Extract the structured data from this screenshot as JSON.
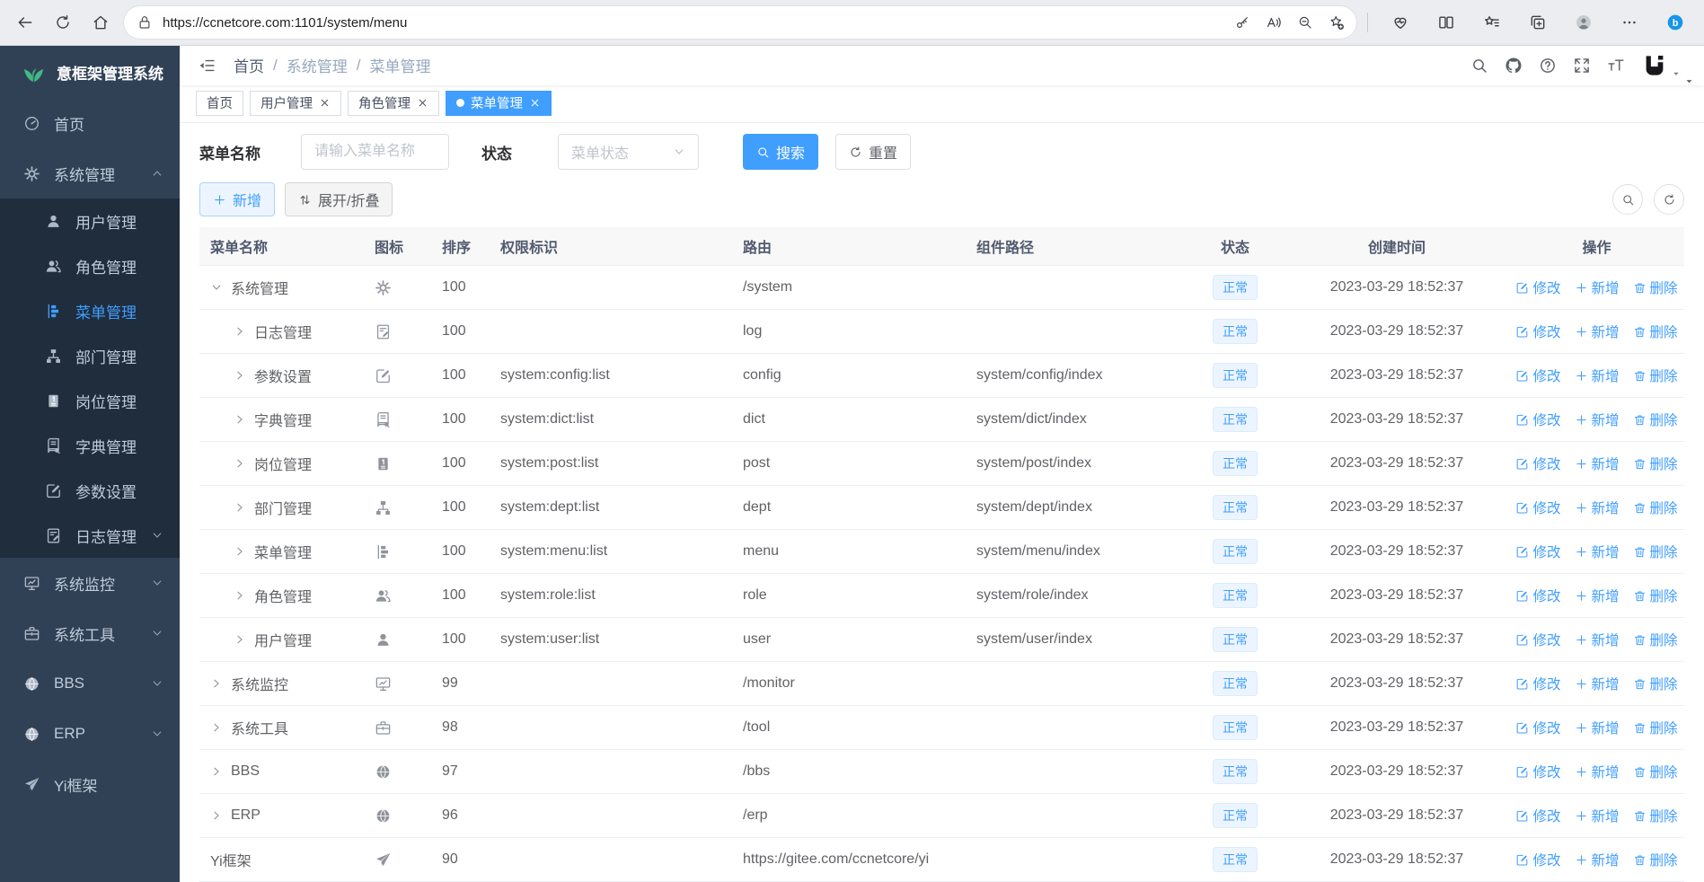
{
  "colors": {
    "accent": "#409EFF",
    "sidebar_bg": "#304156",
    "submenu_bg": "#1F2D3D",
    "logo_green": "#42B983",
    "badge_bg": "#ECF5FF",
    "badge_text": "#409EFF",
    "active_tab_bg": "#409EFF"
  },
  "browser": {
    "url": "https://ccnetcore.com:1101/system/menu",
    "nav_icons": [
      "back-arrow",
      "refresh",
      "home"
    ],
    "addressbar_icons": [
      "key",
      "read-aloud",
      "zoom-out",
      "star-add"
    ],
    "action_icons": [
      "browser-essentials",
      "split-screen",
      "favorites",
      "collections",
      "profile-avatar",
      "more-options",
      "bing-chat"
    ]
  },
  "sidebar": {
    "logo_text": "意框架管理系统",
    "items": [
      {
        "key": "home",
        "label": "首页",
        "icon": "dashboard",
        "level": 1
      },
      {
        "key": "system",
        "label": "系统管理",
        "icon": "gear",
        "level": 1,
        "chevron": "up",
        "expanded": true
      },
      {
        "key": "user",
        "label": "用户管理",
        "icon": "user",
        "level": 2
      },
      {
        "key": "role",
        "label": "角色管理",
        "icon": "users",
        "level": 2
      },
      {
        "key": "menu",
        "label": "菜单管理",
        "icon": "menu-tree",
        "level": 2,
        "active": true
      },
      {
        "key": "dept",
        "label": "部门管理",
        "icon": "dept-tree",
        "level": 2
      },
      {
        "key": "post",
        "label": "岗位管理",
        "icon": "post-badge",
        "level": 2
      },
      {
        "key": "dict",
        "label": "字典管理",
        "icon": "dict-book",
        "level": 2
      },
      {
        "key": "config",
        "label": "参数设置",
        "icon": "edit-square",
        "level": 2
      },
      {
        "key": "log",
        "label": "日志管理",
        "icon": "log-doc",
        "level": 2,
        "chevron": "down"
      },
      {
        "key": "monitor",
        "label": "系统监控",
        "icon": "monitor",
        "level": 1,
        "chevron": "down"
      },
      {
        "key": "tool",
        "label": "系统工具",
        "icon": "toolbox",
        "level": 1,
        "chevron": "down"
      },
      {
        "key": "bbs",
        "label": "BBS",
        "icon": "globe",
        "level": 1,
        "chevron": "down"
      },
      {
        "key": "erp",
        "label": "ERP",
        "icon": "globe",
        "level": 1,
        "chevron": "down"
      },
      {
        "key": "yi",
        "label": "Yi框架",
        "icon": "send",
        "level": 1
      }
    ]
  },
  "header": {
    "breadcrumb": [
      "首页",
      "系统管理",
      "菜单管理"
    ],
    "icons": [
      "search",
      "github",
      "question",
      "fullscreen",
      "font-size"
    ]
  },
  "tabs": [
    {
      "key": "home",
      "label": "首页",
      "closable": false,
      "active": false
    },
    {
      "key": "user",
      "label": "用户管理",
      "closable": true,
      "active": false
    },
    {
      "key": "role",
      "label": "角色管理",
      "closable": true,
      "active": false
    },
    {
      "key": "menu",
      "label": "菜单管理",
      "closable": true,
      "active": true
    }
  ],
  "filters": {
    "name_label": "菜单名称",
    "name_placeholder": "请输入菜单名称",
    "status_label": "状态",
    "status_placeholder": "菜单状态",
    "search_label": "搜索",
    "reset_label": "重置"
  },
  "toolbar": {
    "add_label": "新增",
    "expand_label": "展开/折叠"
  },
  "table": {
    "columns": [
      "菜单名称",
      "图标",
      "排序",
      "权限标识",
      "路由",
      "组件路径",
      "状态",
      "创建时间",
      "操作"
    ],
    "action_labels": [
      "修改",
      "新增",
      "删除"
    ],
    "rows": [
      {
        "key": "system",
        "name": "系统管理",
        "indent": 0,
        "arrow": "down",
        "icon": "gear",
        "sort": "100",
        "perm": "",
        "route": "/system",
        "component": "",
        "status": "正常",
        "created": "2023-03-29 18:52:37"
      },
      {
        "key": "log",
        "name": "日志管理",
        "indent": 1,
        "arrow": "right",
        "icon": "log-doc",
        "sort": "100",
        "perm": "",
        "route": "log",
        "component": "",
        "status": "正常",
        "created": "2023-03-29 18:52:37"
      },
      {
        "key": "config",
        "name": "参数设置",
        "indent": 1,
        "arrow": "right",
        "icon": "edit-square",
        "sort": "100",
        "perm": "system:config:list",
        "route": "config",
        "component": "system/config/index",
        "status": "正常",
        "created": "2023-03-29 18:52:37"
      },
      {
        "key": "dict",
        "name": "字典管理",
        "indent": 1,
        "arrow": "right",
        "icon": "dict-book",
        "sort": "100",
        "perm": "system:dict:list",
        "route": "dict",
        "component": "system/dict/index",
        "status": "正常",
        "created": "2023-03-29 18:52:37"
      },
      {
        "key": "post",
        "name": "岗位管理",
        "indent": 1,
        "arrow": "right",
        "icon": "post-badge",
        "sort": "100",
        "perm": "system:post:list",
        "route": "post",
        "component": "system/post/index",
        "status": "正常",
        "created": "2023-03-29 18:52:37"
      },
      {
        "key": "dept",
        "name": "部门管理",
        "indent": 1,
        "arrow": "right",
        "icon": "dept-tree",
        "sort": "100",
        "perm": "system:dept:list",
        "route": "dept",
        "component": "system/dept/index",
        "status": "正常",
        "created": "2023-03-29 18:52:37"
      },
      {
        "key": "menu",
        "name": "菜单管理",
        "indent": 1,
        "arrow": "right",
        "icon": "menu-tree",
        "sort": "100",
        "perm": "system:menu:list",
        "route": "menu",
        "component": "system/menu/index",
        "status": "正常",
        "created": "2023-03-29 18:52:37"
      },
      {
        "key": "role",
        "name": "角色管理",
        "indent": 1,
        "arrow": "right",
        "icon": "users",
        "sort": "100",
        "perm": "system:role:list",
        "route": "role",
        "component": "system/role/index",
        "status": "正常",
        "created": "2023-03-29 18:52:37"
      },
      {
        "key": "user",
        "name": "用户管理",
        "indent": 1,
        "arrow": "right",
        "icon": "user",
        "sort": "100",
        "perm": "system:user:list",
        "route": "user",
        "component": "system/user/index",
        "status": "正常",
        "created": "2023-03-29 18:52:37"
      },
      {
        "key": "monitor",
        "name": "系统监控",
        "indent": 0,
        "arrow": "right",
        "icon": "monitor",
        "sort": "99",
        "perm": "",
        "route": "/monitor",
        "component": "",
        "status": "正常",
        "created": "2023-03-29 18:52:37"
      },
      {
        "key": "tool",
        "name": "系统工具",
        "indent": 0,
        "arrow": "right",
        "icon": "toolbox",
        "sort": "98",
        "perm": "",
        "route": "/tool",
        "component": "",
        "status": "正常",
        "created": "2023-03-29 18:52:37"
      },
      {
        "key": "bbs",
        "name": "BBS",
        "indent": 0,
        "arrow": "right",
        "icon": "globe",
        "sort": "97",
        "perm": "",
        "route": "/bbs",
        "component": "",
        "status": "正常",
        "created": "2023-03-29 18:52:37"
      },
      {
        "key": "erp",
        "name": "ERP",
        "indent": 0,
        "arrow": "right",
        "icon": "globe",
        "sort": "96",
        "perm": "",
        "route": "/erp",
        "component": "",
        "status": "正常",
        "created": "2023-03-29 18:52:37"
      },
      {
        "key": "yi",
        "name": "Yi框架",
        "indent": 0,
        "arrow": "none",
        "icon": "send",
        "sort": "90",
        "perm": "",
        "route": "https://gitee.com/ccnetcore/yi",
        "component": "",
        "status": "正常",
        "created": "2023-03-29 18:52:37"
      }
    ]
  }
}
